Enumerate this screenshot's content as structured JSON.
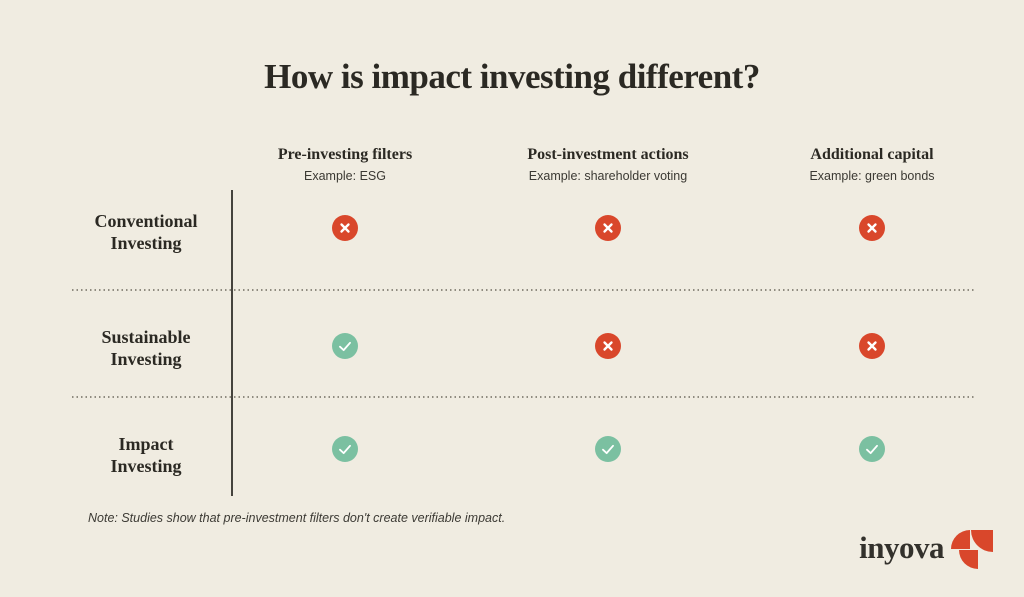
{
  "title": "How is impact investing different?",
  "columns": [
    {
      "label": "Pre-investing filters",
      "example": "Example: ESG"
    },
    {
      "label": "Post-investment actions",
      "example": "Example: shareholder voting"
    },
    {
      "label": "Additional capital",
      "example": "Example: green bonds"
    }
  ],
  "rows": [
    {
      "label_line1": "Conventional",
      "label_line2": "Investing",
      "cells": [
        "no",
        "no",
        "no"
      ]
    },
    {
      "label_line1": "Sustainable",
      "label_line2": "Investing",
      "cells": [
        "yes",
        "no",
        "no"
      ]
    },
    {
      "label_line1": "Impact",
      "label_line2": "Investing",
      "cells": [
        "yes",
        "yes",
        "yes"
      ]
    }
  ],
  "note": "Note: Studies show that pre-investment filters don't create verifiable impact.",
  "logo": {
    "text": "inyova"
  },
  "icons": {
    "no": "x-icon",
    "yes": "check-icon"
  },
  "colors": {
    "background": "#F0ECE1",
    "text": "#2B2923",
    "no": "#D9472B",
    "yes": "#7BC0A1"
  }
}
